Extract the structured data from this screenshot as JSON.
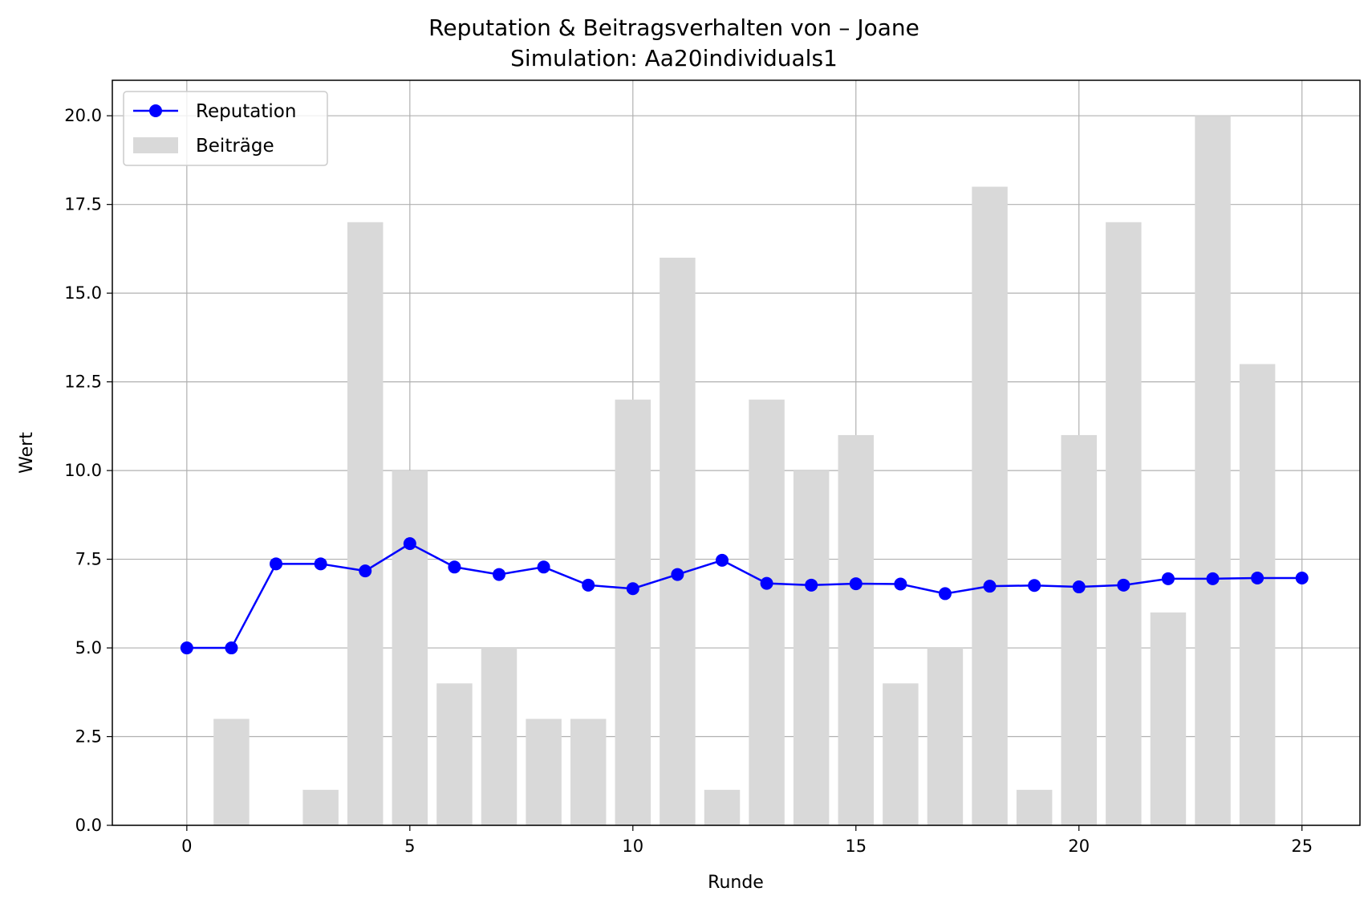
{
  "chart_data": {
    "type": "bar",
    "title": "Reputation & Beitragsverhalten von – Joane",
    "subtitle": "Simulation: Aa20individuals1",
    "xlabel": "Runde",
    "ylabel": "Wert",
    "xlim": [
      -1.67,
      26.3
    ],
    "ylim": [
      0,
      21
    ],
    "xticks": [
      0,
      5,
      10,
      15,
      20,
      25
    ],
    "yticks": [
      0.0,
      2.5,
      5.0,
      7.5,
      10.0,
      12.5,
      15.0,
      17.5,
      20.0
    ],
    "xtick_labels": [
      "0",
      "5",
      "10",
      "15",
      "20",
      "25"
    ],
    "ytick_labels": [
      "0.0",
      "2.5",
      "5.0",
      "7.5",
      "10.0",
      "12.5",
      "15.0",
      "17.5",
      "20.0"
    ],
    "grid": true,
    "legend_position": "top-left",
    "series": [
      {
        "name": "Reputation",
        "kind": "line",
        "color": "#0000ff",
        "marker": "circle",
        "x": [
          0,
          1,
          2,
          3,
          4,
          5,
          6,
          7,
          8,
          9,
          10,
          11,
          12,
          13,
          14,
          15,
          16,
          17,
          18,
          19,
          20,
          21,
          22,
          23,
          24,
          25
        ],
        "values": [
          5.0,
          5.0,
          7.37,
          7.37,
          7.17,
          7.94,
          7.28,
          7.07,
          7.28,
          6.77,
          6.67,
          7.07,
          7.47,
          6.82,
          6.77,
          6.81,
          6.8,
          6.53,
          6.74,
          6.76,
          6.72,
          6.77,
          6.95,
          6.95,
          6.97,
          6.97
        ]
      },
      {
        "name": "Beiträge",
        "kind": "bar",
        "color": "#d9d9d9",
        "x": [
          0,
          1,
          2,
          3,
          4,
          5,
          6,
          7,
          8,
          9,
          10,
          11,
          12,
          13,
          14,
          15,
          16,
          17,
          18,
          19,
          20,
          21,
          22,
          23,
          24,
          25
        ],
        "values": [
          0,
          3,
          0,
          1,
          17,
          10,
          4,
          5,
          3,
          3,
          12,
          16,
          1,
          12,
          10,
          11,
          4,
          5,
          18,
          1,
          11,
          17,
          6,
          20,
          13,
          0
        ]
      }
    ]
  }
}
